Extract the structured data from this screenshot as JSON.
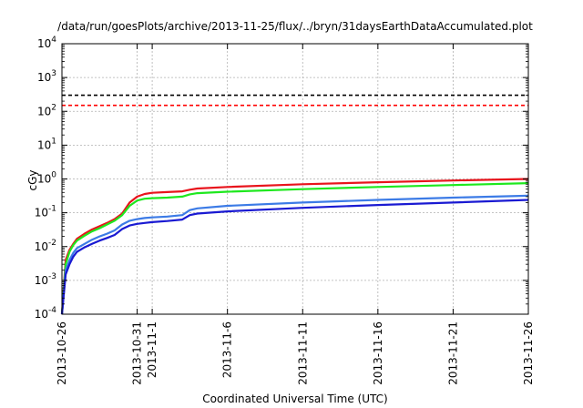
{
  "chart_data": {
    "type": "line",
    "title": "/data/run/goesPlots/archive/2013-11-25/flux/../bryn/31daysEarthDataAccumulated.plot",
    "xlabel": "Coordinated Universal Time (UTC)",
    "ylabel": "cGy",
    "y_scale": "log",
    "ylim": [
      0.0001,
      10000
    ],
    "xlim": [
      "2013-10-26",
      "2013-11-26"
    ],
    "grid": true,
    "y_ticks": [
      {
        "base": "10",
        "exp": "-4",
        "value": 0.0001
      },
      {
        "base": "10",
        "exp": "-3",
        "value": 0.001
      },
      {
        "base": "10",
        "exp": "-2",
        "value": 0.01
      },
      {
        "base": "10",
        "exp": "-1",
        "value": 0.1
      },
      {
        "base": "10",
        "exp": "0",
        "value": 1
      },
      {
        "base": "10",
        "exp": "1",
        "value": 10
      },
      {
        "base": "10",
        "exp": "2",
        "value": 100
      },
      {
        "base": "10",
        "exp": "3",
        "value": 1000
      },
      {
        "base": "10",
        "exp": "4",
        "value": 10000
      }
    ],
    "x_ticks": [
      "2013-10-26",
      "2013-10-31",
      "2013-11-1",
      "2013-11-6",
      "2013-11-11",
      "2013-11-16",
      "2013-11-21",
      "2013-11-26"
    ],
    "x_tick_dates": [
      "2013-10-26",
      "2013-10-31",
      "2013-11-01",
      "2013-11-06",
      "2013-11-11",
      "2013-11-16",
      "2013-11-21",
      "2013-11-26"
    ],
    "thresholds": [
      {
        "value": 300,
        "color": "#000000",
        "style": "dashed"
      },
      {
        "value": 150,
        "color": "#ff0000",
        "style": "dashed"
      }
    ],
    "series": [
      {
        "color": "#e8141c",
        "x": [
          "2013-10-26",
          "2013-10-26T06:00",
          "2013-10-26T12:00",
          "2013-10-26T18:00",
          "2013-10-27",
          "2013-10-27T12:00",
          "2013-10-28",
          "2013-10-28T12:00",
          "2013-10-29",
          "2013-10-29T12:00",
          "2013-10-30",
          "2013-10-30T12:00",
          "2013-10-31",
          "2013-10-31T12:00",
          "2013-11-01",
          "2013-11-02",
          "2013-11-03",
          "2013-11-03T12:00",
          "2013-11-04",
          "2013-11-06",
          "2013-11-11",
          "2013-11-16",
          "2013-11-21",
          "2013-11-26"
        ],
        "y": [
          0.0001,
          0.004,
          0.008,
          0.012,
          0.017,
          0.024,
          0.032,
          0.04,
          0.05,
          0.065,
          0.095,
          0.2,
          0.3,
          0.36,
          0.39,
          0.41,
          0.43,
          0.48,
          0.52,
          0.58,
          0.7,
          0.8,
          0.9,
          1.0
        ]
      },
      {
        "color": "#1ee81e",
        "x": [
          "2013-10-26",
          "2013-10-26T06:00",
          "2013-10-26T12:00",
          "2013-10-26T18:00",
          "2013-10-27",
          "2013-10-27T12:00",
          "2013-10-28",
          "2013-10-28T12:00",
          "2013-10-29",
          "2013-10-29T12:00",
          "2013-10-30",
          "2013-10-30T12:00",
          "2013-10-31",
          "2013-10-31T12:00",
          "2013-11-01",
          "2013-11-02",
          "2013-11-03",
          "2013-11-03T12:00",
          "2013-11-04",
          "2013-11-06",
          "2013-11-11",
          "2013-11-16",
          "2013-11-21",
          "2013-11-26"
        ],
        "y": [
          0.0001,
          0.003,
          0.007,
          0.011,
          0.015,
          0.021,
          0.028,
          0.035,
          0.045,
          0.058,
          0.085,
          0.16,
          0.23,
          0.26,
          0.27,
          0.28,
          0.3,
          0.35,
          0.38,
          0.42,
          0.5,
          0.58,
          0.66,
          0.75
        ]
      },
      {
        "color": "#3c7be6",
        "x": [
          "2013-10-26",
          "2013-10-26T06:00",
          "2013-10-26T12:00",
          "2013-10-26T18:00",
          "2013-10-27",
          "2013-10-27T12:00",
          "2013-10-28",
          "2013-10-28T12:00",
          "2013-10-29",
          "2013-10-29T12:00",
          "2013-10-30",
          "2013-10-30T12:00",
          "2013-10-31",
          "2013-10-31T12:00",
          "2013-11-01",
          "2013-11-02",
          "2013-11-03",
          "2013-11-03T12:00",
          "2013-11-04",
          "2013-11-06",
          "2013-11-11",
          "2013-11-16",
          "2013-11-21",
          "2013-11-26"
        ],
        "y": [
          0.0001,
          0.002,
          0.004,
          0.0065,
          0.009,
          0.012,
          0.016,
          0.02,
          0.024,
          0.03,
          0.045,
          0.058,
          0.065,
          0.07,
          0.073,
          0.077,
          0.085,
          0.12,
          0.135,
          0.16,
          0.2,
          0.24,
          0.28,
          0.32
        ]
      },
      {
        "color": "#1a1ad2",
        "x": [
          "2013-10-26",
          "2013-10-26T06:00",
          "2013-10-26T12:00",
          "2013-10-26T18:00",
          "2013-10-27",
          "2013-10-27T12:00",
          "2013-10-28",
          "2013-10-28T12:00",
          "2013-10-29",
          "2013-10-29T12:00",
          "2013-10-30",
          "2013-10-30T12:00",
          "2013-10-31",
          "2013-10-31T12:00",
          "2013-11-01",
          "2013-11-02",
          "2013-11-03",
          "2013-11-03T12:00",
          "2013-11-04",
          "2013-11-06",
          "2013-11-11",
          "2013-11-16",
          "2013-11-21",
          "2013-11-26"
        ],
        "y": [
          0.0001,
          0.0015,
          0.003,
          0.005,
          0.007,
          0.0095,
          0.012,
          0.015,
          0.018,
          0.022,
          0.033,
          0.042,
          0.047,
          0.05,
          0.053,
          0.057,
          0.063,
          0.085,
          0.095,
          0.11,
          0.14,
          0.17,
          0.2,
          0.24
        ]
      }
    ]
  }
}
